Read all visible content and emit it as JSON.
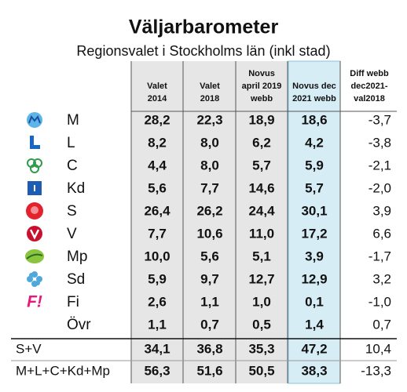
{
  "header": {
    "title": "Väljarbarometer",
    "subtitle": "Regionsvalet i Stockholms län (inkl stad)"
  },
  "table": {
    "columns": [
      [
        "Valet",
        "2014"
      ],
      [
        "Valet",
        "2018"
      ],
      [
        "Novus",
        "april 2019",
        "webb"
      ],
      [
        "Novus dec",
        "2021 webb"
      ],
      [
        "Diff webb",
        "dec2021-",
        "val2018"
      ]
    ],
    "rows": [
      {
        "party": "M",
        "values": [
          "28,2",
          "22,3",
          "18,9",
          "18,6",
          "-3,7"
        ]
      },
      {
        "party": "L",
        "values": [
          "8,2",
          "8,0",
          "6,2",
          "4,2",
          "-3,8"
        ]
      },
      {
        "party": "C",
        "values": [
          "4,4",
          "8,0",
          "5,7",
          "5,9",
          "-2,1"
        ]
      },
      {
        "party": "Kd",
        "values": [
          "5,6",
          "7,7",
          "14,6",
          "5,7",
          "-2,0"
        ]
      },
      {
        "party": "S",
        "values": [
          "26,4",
          "26,2",
          "24,4",
          "30,1",
          "3,9"
        ]
      },
      {
        "party": "V",
        "values": [
          "7,7",
          "10,6",
          "11,0",
          "17,2",
          "6,6"
        ]
      },
      {
        "party": "Mp",
        "values": [
          "10,0",
          "5,6",
          "5,1",
          "3,9",
          "-1,7"
        ]
      },
      {
        "party": "Sd",
        "values": [
          "5,9",
          "9,7",
          "12,7",
          "12,9",
          "3,2"
        ]
      },
      {
        "party": "Fi",
        "logo": "F!",
        "values": [
          "2,6",
          "1,1",
          "1,0",
          "0,1",
          "-1,0"
        ]
      },
      {
        "party": "Övr",
        "values": [
          "1,1",
          "0,7",
          "0,5",
          "1,4",
          "0,7"
        ]
      }
    ],
    "summary": [
      {
        "label": "S+V",
        "values": [
          "34,1",
          "36,8",
          "35,3",
          "47,2",
          "10,4"
        ]
      },
      {
        "label": "M+L+C+Kd+Mp",
        "values": [
          "56,3",
          "51,6",
          "50,5",
          "38,3",
          "-13,3"
        ]
      }
    ]
  }
}
